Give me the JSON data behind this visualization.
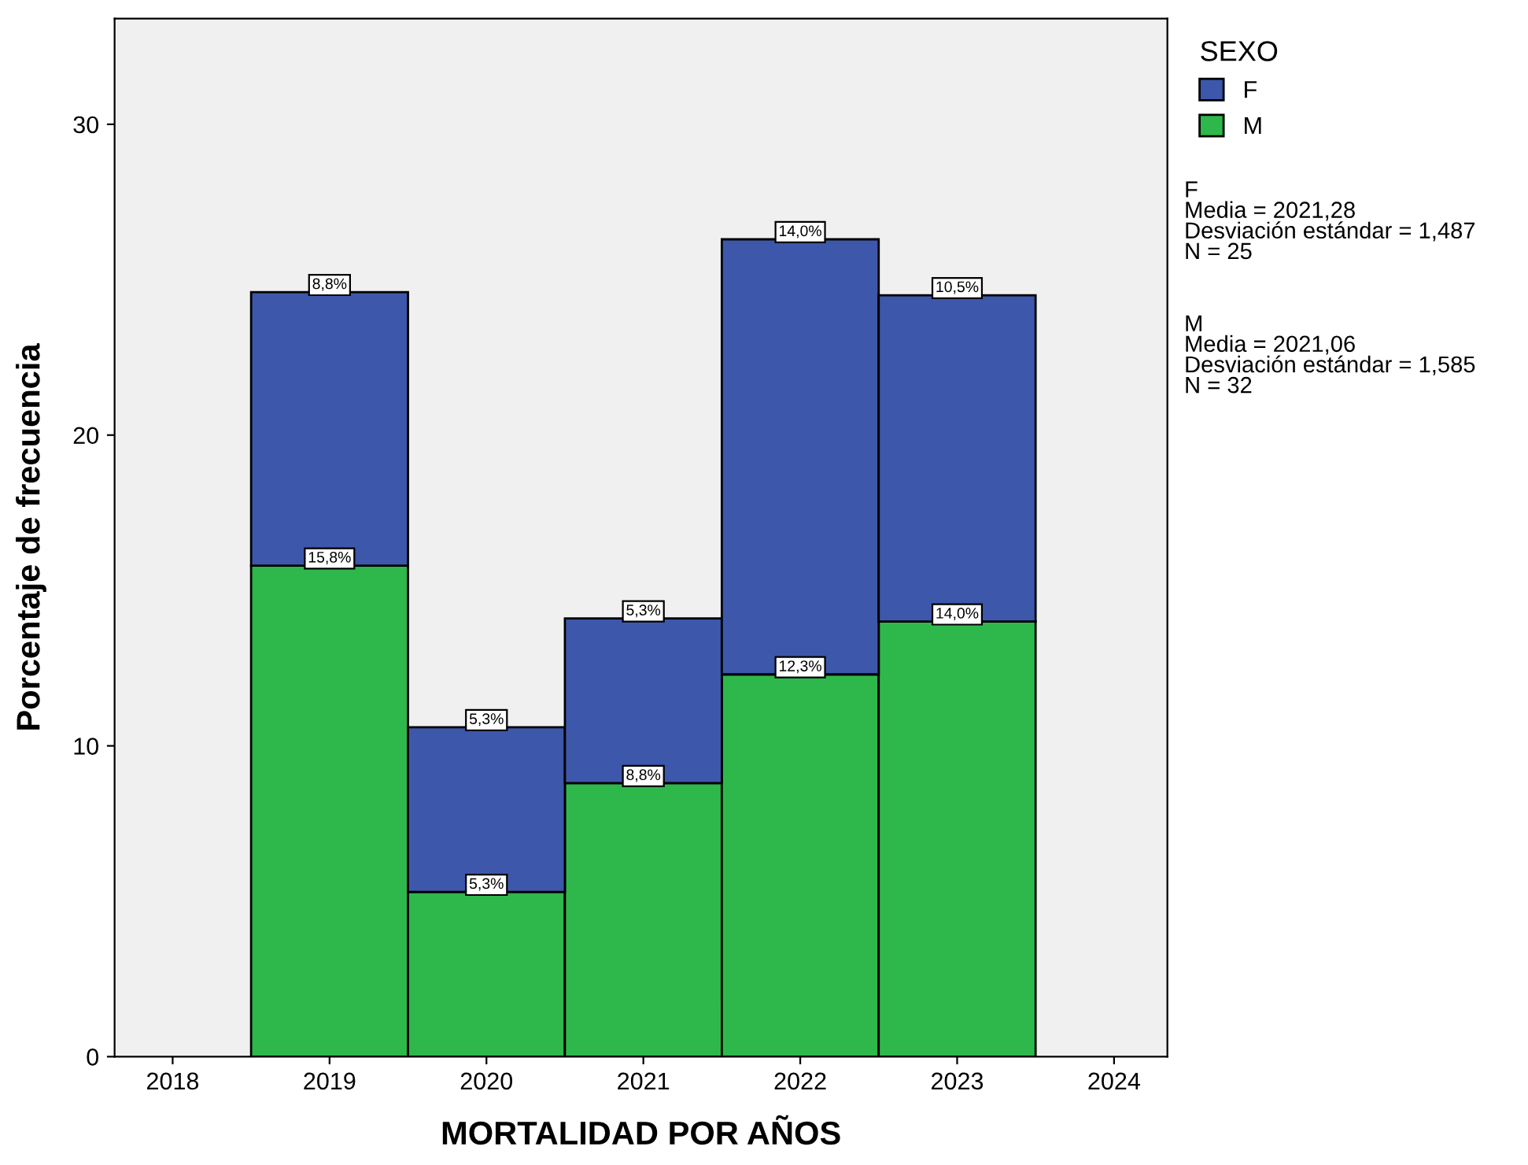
{
  "chart_data": {
    "type": "bar",
    "xlabel": "MORTALIDAD POR AÑOS",
    "ylabel": "Porcentaje de frecuencia",
    "legend_title": "SEXO",
    "stacked": true,
    "x": [
      2019,
      2020,
      2021,
      2022,
      2023
    ],
    "series": [
      {
        "name": "M",
        "color": "#2eb84b",
        "values": [
          15.8,
          5.3,
          8.8,
          12.3,
          14.0
        ],
        "value_labels": [
          "15,8%",
          "5,3%",
          "8,8%",
          "12,3%",
          "14,0%"
        ]
      },
      {
        "name": "F",
        "color": "#3d57ab",
        "values": [
          8.8,
          5.3,
          5.3,
          14.0,
          10.5
        ],
        "value_labels": [
          "8,8%",
          "5,3%",
          "5,3%",
          "14,0%",
          "10,5%"
        ]
      }
    ],
    "xlim": [
      2017.63,
      2024.34
    ],
    "ylim": [
      0,
      33.4
    ],
    "xticks": [
      2018,
      2019,
      2020,
      2021,
      2022,
      2023,
      2024
    ],
    "yticks": [
      0,
      10,
      20,
      30
    ],
    "grid": false,
    "legend": "top right",
    "annotations": [
      "F\nMedia = 2021,28\nDesviación estándar = 1,487\nN = 25",
      "M\nMedia = 2021,06\nDesviación estándar = 1,585\nN = 32"
    ]
  }
}
